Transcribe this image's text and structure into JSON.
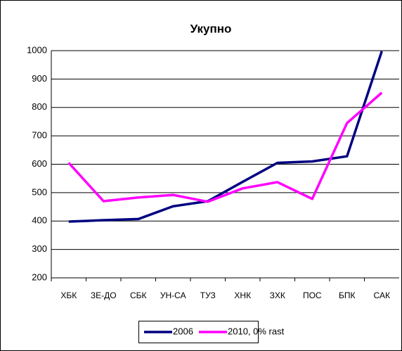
{
  "chart_data": {
    "type": "line",
    "title": "Укупно",
    "categories": [
      "ХБК",
      "ЗЕ-ДО",
      "СБК",
      "УН-СА",
      "ТУЗ",
      "ХНК",
      "ЗХК",
      "ПОС",
      "БПК",
      "САК"
    ],
    "series": [
      {
        "name": "2006",
        "color": "#000080",
        "values": [
          398,
          403,
          407,
          452,
          470,
          538,
          605,
          610,
          628,
          998
        ]
      },
      {
        "name": "2010, 0% rast",
        "color": "#ff00ff",
        "values": [
          605,
          470,
          483,
          492,
          468,
          515,
          537,
          478,
          745,
          852
        ]
      }
    ],
    "ylim": [
      200,
      1000
    ],
    "yticks": [
      200,
      300,
      400,
      500,
      600,
      700,
      800,
      900,
      1000
    ],
    "grid": true
  }
}
